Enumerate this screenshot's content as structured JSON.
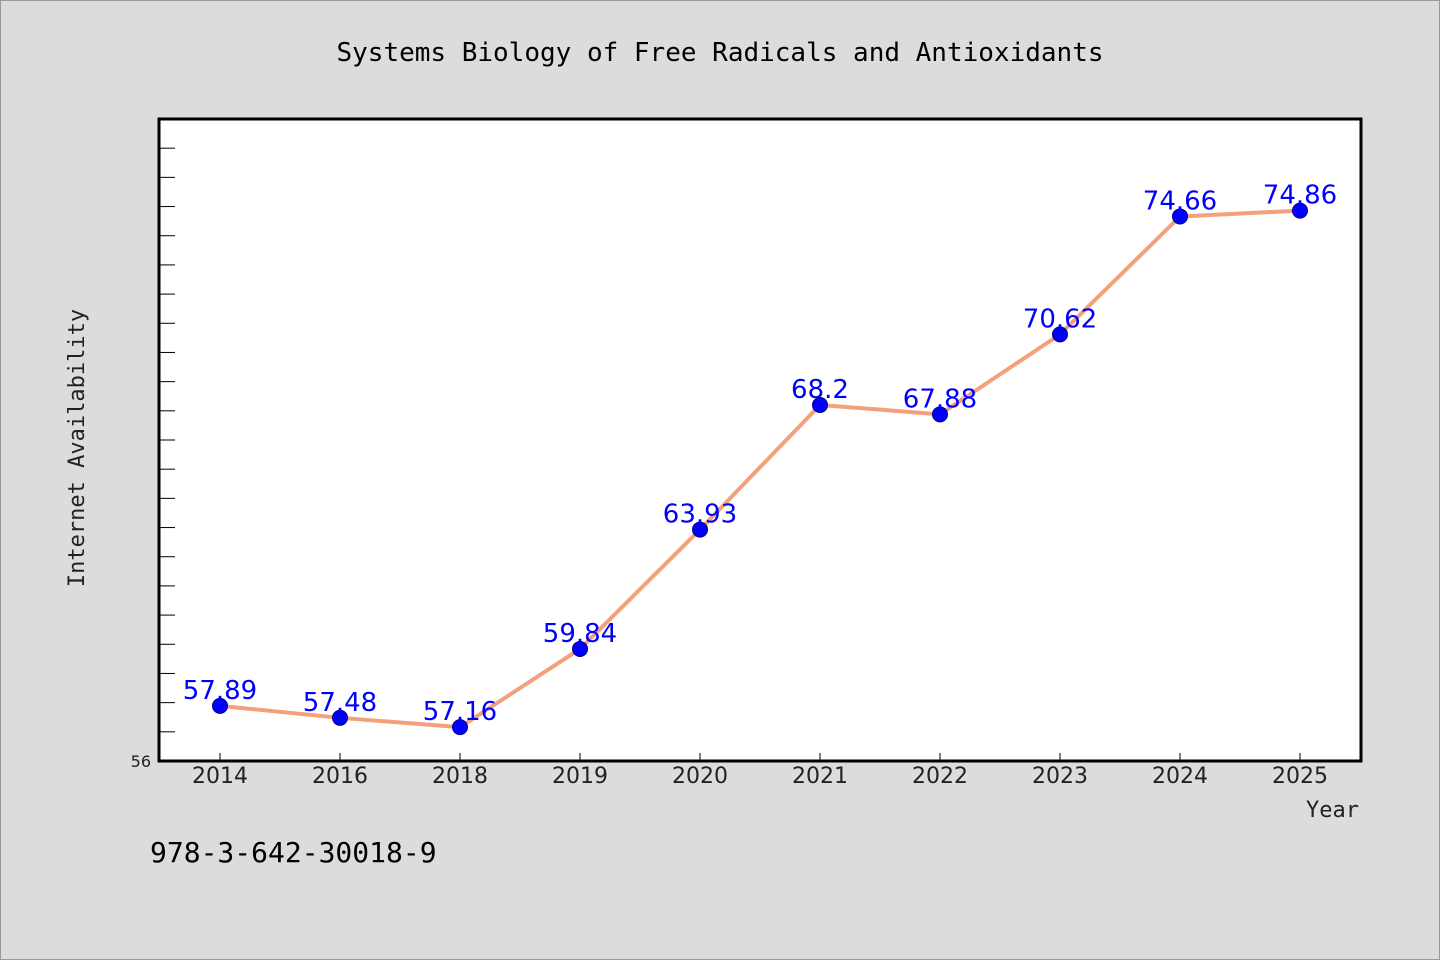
{
  "chart_data": {
    "type": "line",
    "title": "Systems Biology of Free Radicals and Antioxidants",
    "xlabel": "Year",
    "ylabel": "Internet Availability",
    "categories": [
      "2014",
      "2016",
      "2018",
      "2019",
      "2020",
      "2021",
      "2022",
      "2023",
      "2024",
      "2025"
    ],
    "series": [
      {
        "values": [
          57.89,
          57.48,
          57.16,
          59.84,
          63.93,
          68.2,
          67.88,
          70.62,
          74.66,
          74.86
        ]
      }
    ],
    "data_labels": [
      "57.89",
      "57.48",
      "57.16",
      "59.84",
      "63.93",
      "68.2",
      "67.88",
      "70.62",
      "74.66",
      "74.86"
    ],
    "ylim": [
      56,
      78
    ],
    "y_tick_labels": [
      "56"
    ],
    "y_minor_tick_step": 1,
    "grid": false,
    "legend": "none",
    "colors": {
      "line": "#f4a07c",
      "marker": "#0000ff",
      "data_label": "#0000ff",
      "plot_background": "#ffffff",
      "page_background": "#dcdcdc"
    }
  },
  "footer": {
    "isbn": "978-3-642-30018-9"
  }
}
